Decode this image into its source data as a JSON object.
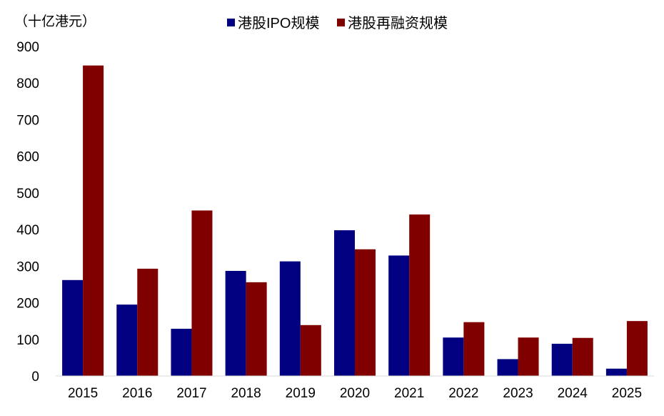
{
  "chart_data": {
    "type": "bar",
    "unit_label": "（十亿港元）",
    "categories": [
      "2015",
      "2016",
      "2017",
      "2018",
      "2019",
      "2020",
      "2021",
      "2022",
      "2023",
      "2024",
      "2025"
    ],
    "series": [
      {
        "name": "港股IPO规模",
        "color": "#000080",
        "values": [
          262,
          195,
          129,
          287,
          313,
          398,
          329,
          105,
          46,
          88,
          20
        ]
      },
      {
        "name": "港股再融资规模",
        "color": "#800000",
        "values": [
          848,
          293,
          452,
          256,
          139,
          346,
          441,
          147,
          105,
          104,
          150
        ]
      }
    ],
    "ylim": [
      0,
      900
    ],
    "yticks": [
      "0",
      "100",
      "200",
      "300",
      "400",
      "500",
      "600",
      "700",
      "800",
      "900"
    ],
    "grid": false,
    "legend_position": "top-center"
  }
}
